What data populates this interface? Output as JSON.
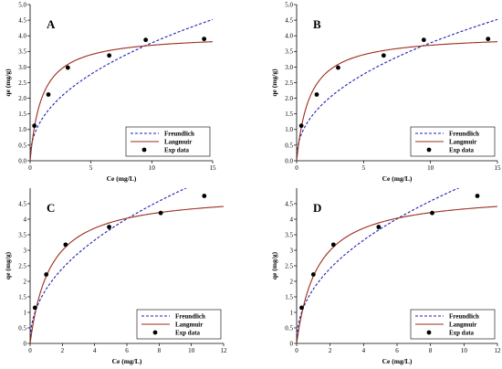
{
  "chart_data": [
    {
      "type": "scatter",
      "panel_label": "A",
      "xlabel": "Ce (mg/L)",
      "ylabel": "qe (mg/g)",
      "xlim": [
        0,
        15
      ],
      "ylim": [
        0,
        5
      ],
      "xticks": [
        0,
        5,
        10,
        15
      ],
      "yticks": [
        0.0,
        0.5,
        1.0,
        1.5,
        2.0,
        2.5,
        3.0,
        3.5,
        4.0,
        4.5,
        5.0
      ],
      "ytick_labels": [
        "0.0",
        "0.5",
        "1.0",
        "1.5",
        "2.0",
        "2.5",
        "3.0",
        "3.5",
        "4.0",
        "4.5",
        "5.0"
      ],
      "legend_position": "bottom-right",
      "series": [
        {
          "name": "Freundlich",
          "kind": "line",
          "style": "dashed",
          "color": "#1f1fb4",
          "model": {
            "type": "freundlich",
            "KF": 1.35,
            "n": 2.24
          }
        },
        {
          "name": "Langmuir",
          "kind": "line",
          "style": "solid",
          "color": "#9b2c1c",
          "model": {
            "type": "langmuir",
            "qmax": 4.06,
            "KL": 1.02
          }
        },
        {
          "name": "Exp data",
          "kind": "points",
          "color": "#000000",
          "x": [
            0.35,
            1.5,
            3.1,
            6.5,
            9.5,
            14.3
          ],
          "y": [
            1.12,
            2.12,
            2.98,
            3.37,
            3.87,
            3.9
          ]
        }
      ]
    },
    {
      "type": "scatter",
      "panel_label": "B",
      "xlabel": "Ce (mg/L)",
      "ylabel": "qe (mg/g)",
      "xlim": [
        0,
        15
      ],
      "ylim": [
        0,
        5
      ],
      "xticks": [
        0,
        5,
        10,
        15
      ],
      "yticks": [
        0.0,
        0.5,
        1.0,
        1.5,
        2.0,
        2.5,
        3.0,
        3.5,
        4.0,
        4.5,
        5.0
      ],
      "ytick_labels": [
        "0.0",
        "0.5",
        "1.0",
        "1.5",
        "2.0",
        "2.5",
        "3.0",
        "3.5",
        "4.0",
        "4.5",
        "5.0"
      ],
      "legend_position": "bottom-right",
      "series": [
        {
          "name": "Freundlich",
          "kind": "line",
          "style": "dashed",
          "color": "#1f1fb4",
          "model": {
            "type": "freundlich",
            "KF": 1.35,
            "n": 2.24
          }
        },
        {
          "name": "Langmuir",
          "kind": "line",
          "style": "solid",
          "color": "#9b2c1c",
          "model": {
            "type": "langmuir",
            "qmax": 4.06,
            "KL": 1.02
          }
        },
        {
          "name": "Exp data",
          "kind": "points",
          "color": "#000000",
          "x": [
            0.35,
            1.5,
            3.1,
            6.5,
            9.5,
            14.3
          ],
          "y": [
            1.12,
            2.12,
            2.98,
            3.37,
            3.87,
            3.9
          ]
        }
      ]
    },
    {
      "type": "scatter",
      "panel_label": "C",
      "xlabel": "Ce (mg/L)",
      "ylabel": "qe (mg/g)",
      "xlim": [
        0,
        12
      ],
      "ylim": [
        0,
        5
      ],
      "xticks": [
        0,
        2,
        4,
        6,
        8,
        10,
        12
      ],
      "yticks": [
        0,
        0.5,
        1,
        1.5,
        2,
        2.5,
        3,
        3.5,
        4,
        4.5
      ],
      "ytick_labels": [
        "0",
        "0.5",
        "1",
        "1.5",
        "2",
        "2.5",
        "3",
        "3.5",
        "4",
        "4.5"
      ],
      "legend_position": "bottom-right",
      "series": [
        {
          "name": "Freundlich",
          "kind": "line",
          "style": "dashed",
          "color": "#1f1fb4",
          "model": {
            "type": "freundlich",
            "KF": 1.75,
            "n": 2.16
          }
        },
        {
          "name": "Langmuir",
          "kind": "line",
          "style": "solid",
          "color": "#9b2c1c",
          "model": {
            "type": "langmuir",
            "qmax": 4.87,
            "KL": 0.8
          }
        },
        {
          "name": "Exp data",
          "kind": "points",
          "color": "#000000",
          "x": [
            0.3,
            1.0,
            2.2,
            4.9,
            8.1,
            10.8
          ],
          "y": [
            1.15,
            2.22,
            3.18,
            3.75,
            4.2,
            4.75
          ]
        }
      ]
    },
    {
      "type": "scatter",
      "panel_label": "D",
      "xlabel": "Ce (mg/L)",
      "ylabel": "qe (mg/g)",
      "xlim": [
        0,
        12
      ],
      "ylim": [
        0,
        5
      ],
      "xticks": [
        0,
        2,
        4,
        6,
        8,
        10,
        12
      ],
      "yticks": [
        0,
        0.5,
        1,
        1.5,
        2,
        2.5,
        3,
        3.5,
        4,
        4.5
      ],
      "ytick_labels": [
        "0",
        "0.5",
        "1",
        "1.5",
        "2",
        "2.5",
        "3",
        "3.5",
        "4",
        "4.5"
      ],
      "legend_position": "bottom-right",
      "series": [
        {
          "name": "Freundlich",
          "kind": "line",
          "style": "dashed",
          "color": "#1f1fb4",
          "model": {
            "type": "freundlich",
            "KF": 1.75,
            "n": 2.16
          }
        },
        {
          "name": "Langmuir",
          "kind": "line",
          "style": "solid",
          "color": "#9b2c1c",
          "model": {
            "type": "langmuir",
            "qmax": 4.87,
            "KL": 0.8
          }
        },
        {
          "name": "Exp data",
          "kind": "points",
          "color": "#000000",
          "x": [
            0.3,
            1.0,
            2.2,
            4.9,
            8.1,
            10.8
          ],
          "y": [
            1.15,
            2.22,
            3.18,
            3.75,
            4.2,
            4.75
          ]
        }
      ]
    }
  ]
}
